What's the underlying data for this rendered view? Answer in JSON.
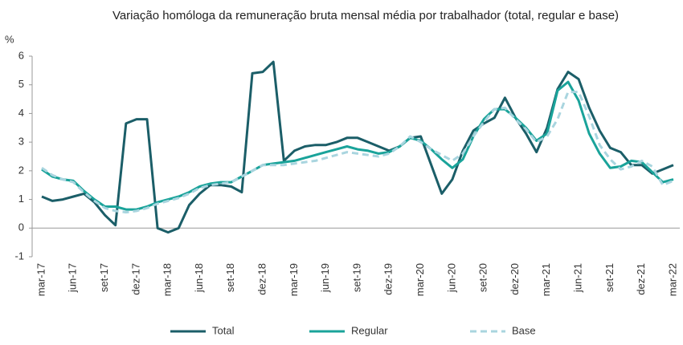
{
  "chart_data": {
    "type": "line",
    "title": "Variação homóloga da remuneração bruta mensal média por trabalhador (total, regular e base)",
    "y_label": "%",
    "categories": [
      "mar-17",
      null,
      null,
      "jun-17",
      null,
      null,
      "set-17",
      null,
      null,
      "dez-17",
      null,
      null,
      "mar-18",
      null,
      null,
      "jun-18",
      null,
      null,
      "set-18",
      null,
      null,
      "dez-18",
      null,
      null,
      "mar-19",
      null,
      null,
      "jun-19",
      null,
      null,
      "set-19",
      null,
      null,
      "dez-19",
      null,
      null,
      "mar-20",
      null,
      null,
      "jun-20",
      null,
      null,
      "set-20",
      null,
      null,
      "dez-20",
      null,
      null,
      "mar-21",
      null,
      null,
      "jun-21",
      null,
      null,
      "set-21",
      null,
      null,
      "dez-21",
      null,
      null,
      "mar-22"
    ],
    "series": [
      {
        "name": "Total",
        "color": "#1b5e68",
        "dashed": false,
        "values": [
          1.1,
          0.95,
          1.0,
          1.1,
          1.2,
          0.9,
          0.45,
          0.1,
          3.65,
          3.8,
          3.8,
          0.0,
          -0.15,
          0.0,
          0.8,
          1.2,
          1.5,
          1.5,
          1.45,
          1.25,
          5.4,
          5.45,
          5.8,
          2.35,
          2.7,
          2.85,
          2.9,
          2.9,
          3.0,
          3.15,
          3.15,
          3.0,
          2.85,
          2.7,
          2.85,
          3.15,
          3.2,
          2.2,
          1.2,
          1.7,
          2.7,
          3.4,
          3.65,
          3.85,
          4.55,
          3.85,
          3.3,
          2.65,
          3.5,
          4.85,
          5.45,
          5.2,
          4.2,
          3.4,
          2.8,
          2.65,
          2.2,
          2.2,
          1.9,
          2.05,
          2.2
        ]
      },
      {
        "name": "Regular",
        "color": "#1aa39a",
        "dashed": false,
        "values": [
          2.05,
          1.8,
          1.7,
          1.65,
          1.3,
          1.0,
          0.75,
          0.75,
          0.65,
          0.65,
          0.75,
          0.9,
          1.0,
          1.1,
          1.25,
          1.45,
          1.55,
          1.6,
          1.6,
          1.8,
          2.0,
          2.2,
          2.25,
          2.3,
          2.35,
          2.45,
          2.55,
          2.65,
          2.75,
          2.85,
          2.75,
          2.7,
          2.6,
          2.65,
          2.85,
          3.15,
          3.05,
          2.75,
          2.4,
          2.1,
          2.4,
          3.2,
          3.8,
          4.15,
          4.15,
          3.85,
          3.5,
          3.05,
          3.3,
          4.8,
          5.1,
          4.45,
          3.3,
          2.6,
          2.1,
          2.15,
          2.35,
          2.3,
          1.95,
          1.6,
          1.7
        ]
      },
      {
        "name": "Base",
        "color": "#a9d5df",
        "dashed": true,
        "values": [
          2.1,
          1.85,
          1.7,
          1.6,
          1.25,
          0.95,
          0.7,
          0.6,
          0.55,
          0.6,
          0.7,
          0.85,
          0.95,
          1.05,
          1.2,
          1.4,
          1.5,
          1.55,
          1.6,
          1.8,
          2.0,
          2.2,
          2.2,
          2.2,
          2.25,
          2.3,
          2.35,
          2.45,
          2.55,
          2.65,
          2.6,
          2.55,
          2.5,
          2.6,
          2.85,
          3.2,
          3.0,
          2.75,
          2.55,
          2.35,
          2.6,
          3.2,
          3.7,
          4.15,
          4.2,
          3.8,
          3.45,
          3.0,
          3.2,
          3.8,
          4.75,
          4.75,
          3.9,
          2.9,
          2.4,
          2.05,
          2.15,
          2.35,
          2.15,
          1.5,
          1.65
        ]
      }
    ],
    "ylim": [
      -1,
      6
    ],
    "yticks": [
      -1,
      0,
      1,
      2,
      3,
      4,
      5,
      6
    ],
    "grid": false,
    "legend": "bottom"
  }
}
